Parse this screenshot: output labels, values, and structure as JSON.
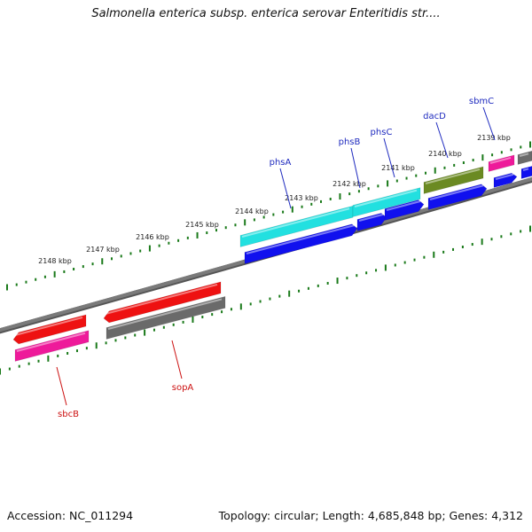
{
  "title": "Salmonella enterica subsp. enterica serovar Enteritidis str....",
  "footer": {
    "accession": "Accession: NC_011294",
    "summary": "Topology: circular; Length: 4,685,848 bp; Genes: 4,312"
  },
  "colors": {
    "background": "#ffffff",
    "backbone": "#7a7a7a",
    "tick": "#1a7a1a",
    "label_fwd": "#1f2bbf",
    "label_rev": "#cc1111",
    "cyan": "#22e0e0",
    "blue": "#1010ee",
    "olive": "#6b8a22",
    "pink": "#ee1a9a",
    "gray": "#6a6a6a",
    "red": "#ee1111"
  },
  "axis": {
    "unit": "kbp",
    "tick_labels": [
      "2148 kbp",
      "2147 kbp",
      "2146 kbp",
      "2145 kbp",
      "2144 kbp",
      "2143 kbp",
      "2142 kbp",
      "2141 kbp",
      "2140 kbp",
      "2139 kbp"
    ]
  },
  "gene_labels": [
    {
      "name": "phsA",
      "strand": "forward"
    },
    {
      "name": "phsB",
      "strand": "forward"
    },
    {
      "name": "phsC",
      "strand": "forward"
    },
    {
      "name": "dacD",
      "strand": "forward"
    },
    {
      "name": "sbmC",
      "strand": "forward"
    },
    {
      "name": "sbcB",
      "strand": "reverse"
    },
    {
      "name": "sopA",
      "strand": "reverse"
    }
  ],
  "features": [
    {
      "track": "forward",
      "color_key": "cyan"
    },
    {
      "track": "forward",
      "color_key": "cyan"
    },
    {
      "track": "forward",
      "color_key": "olive"
    },
    {
      "track": "forward",
      "color_key": "pink"
    },
    {
      "track": "forward",
      "color_key": "gray"
    },
    {
      "track": "forward-cds",
      "color_key": "blue"
    },
    {
      "track": "forward-cds",
      "color_key": "blue"
    },
    {
      "track": "forward-cds",
      "color_key": "blue"
    },
    {
      "track": "forward-cds",
      "color_key": "blue"
    },
    {
      "track": "forward-cds",
      "color_key": "blue"
    },
    {
      "track": "forward-cds",
      "color_key": "blue"
    },
    {
      "track": "reverse",
      "color_key": "red"
    },
    {
      "track": "reverse",
      "color_key": "red"
    },
    {
      "track": "reverse-cds",
      "color_key": "pink"
    },
    {
      "track": "reverse-cds",
      "color_key": "gray"
    }
  ]
}
